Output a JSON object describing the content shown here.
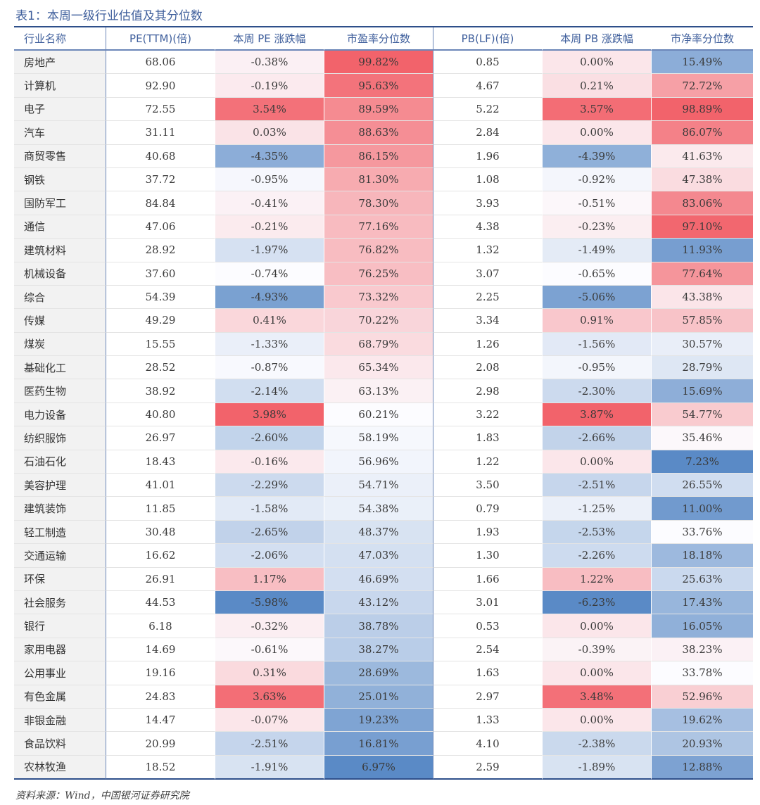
{
  "caption": "表1：本周一级行业估值及其分位数",
  "headers": [
    "行业名称",
    "PE(TTM)(倍)",
    "本周 PE 涨跌幅",
    "市盈率分位数",
    "PB(LF)(倍)",
    "本周 PB 涨跌幅",
    "市净率分位数"
  ],
  "rows": [
    [
      "房地产",
      "68.06",
      "-0.38%",
      "99.82%",
      "0.85",
      "0.00%",
      "15.49%"
    ],
    [
      "计算机",
      "92.90",
      "-0.19%",
      "95.63%",
      "4.67",
      "0.21%",
      "72.72%"
    ],
    [
      "电子",
      "72.55",
      "3.54%",
      "89.59%",
      "5.22",
      "3.57%",
      "98.89%"
    ],
    [
      "汽车",
      "31.11",
      "0.03%",
      "88.63%",
      "2.84",
      "0.00%",
      "86.07%"
    ],
    [
      "商贸零售",
      "40.68",
      "-4.35%",
      "86.15%",
      "1.96",
      "-4.39%",
      "41.63%"
    ],
    [
      "钢铁",
      "37.72",
      "-0.95%",
      "81.30%",
      "1.08",
      "-0.92%",
      "47.38%"
    ],
    [
      "国防军工",
      "84.84",
      "-0.41%",
      "78.30%",
      "3.93",
      "-0.51%",
      "83.06%"
    ],
    [
      "通信",
      "47.06",
      "-0.21%",
      "77.16%",
      "4.38",
      "-0.23%",
      "97.10%"
    ],
    [
      "建筑材料",
      "28.92",
      "-1.97%",
      "76.82%",
      "1.32",
      "-1.49%",
      "11.93%"
    ],
    [
      "机械设备",
      "37.60",
      "-0.74%",
      "76.25%",
      "3.07",
      "-0.65%",
      "77.64%"
    ],
    [
      "综合",
      "54.39",
      "-4.93%",
      "73.32%",
      "2.25",
      "-5.06%",
      "43.38%"
    ],
    [
      "传媒",
      "49.29",
      "0.41%",
      "70.22%",
      "3.34",
      "0.91%",
      "57.85%"
    ],
    [
      "煤炭",
      "15.55",
      "-1.33%",
      "68.79%",
      "1.26",
      "-1.56%",
      "30.57%"
    ],
    [
      "基础化工",
      "28.52",
      "-0.87%",
      "65.34%",
      "2.08",
      "-0.95%",
      "28.79%"
    ],
    [
      "医药生物",
      "38.92",
      "-2.14%",
      "63.13%",
      "2.98",
      "-2.30%",
      "15.69%"
    ],
    [
      "电力设备",
      "40.80",
      "3.98%",
      "60.21%",
      "3.22",
      "3.87%",
      "54.77%"
    ],
    [
      "纺织服饰",
      "26.97",
      "-2.60%",
      "58.19%",
      "1.83",
      "-2.66%",
      "35.46%"
    ],
    [
      "石油石化",
      "18.43",
      "-0.16%",
      "56.96%",
      "1.22",
      "0.00%",
      "7.23%"
    ],
    [
      "美容护理",
      "41.01",
      "-2.29%",
      "54.71%",
      "3.50",
      "-2.51%",
      "26.55%"
    ],
    [
      "建筑装饰",
      "11.85",
      "-1.58%",
      "54.38%",
      "0.79",
      "-1.25%",
      "11.00%"
    ],
    [
      "轻工制造",
      "30.48",
      "-2.65%",
      "48.37%",
      "1.93",
      "-2.53%",
      "33.76%"
    ],
    [
      "交通运输",
      "16.62",
      "-2.06%",
      "47.03%",
      "1.30",
      "-2.26%",
      "18.18%"
    ],
    [
      "环保",
      "26.91",
      "1.17%",
      "46.69%",
      "1.66",
      "1.22%",
      "25.63%"
    ],
    [
      "社会服务",
      "44.53",
      "-5.98%",
      "43.12%",
      "3.01",
      "-6.23%",
      "17.43%"
    ],
    [
      "银行",
      "6.18",
      "-0.32%",
      "38.78%",
      "0.53",
      "0.00%",
      "16.05%"
    ],
    [
      "家用电器",
      "14.69",
      "-0.61%",
      "38.27%",
      "2.54",
      "-0.39%",
      "38.23%"
    ],
    [
      "公用事业",
      "19.16",
      "0.31%",
      "28.69%",
      "1.63",
      "0.00%",
      "33.78%"
    ],
    [
      "有色金属",
      "24.83",
      "3.63%",
      "25.01%",
      "2.97",
      "3.48%",
      "52.96%"
    ],
    [
      "非银金融",
      "14.47",
      "-0.07%",
      "19.23%",
      "1.33",
      "0.00%",
      "19.62%"
    ],
    [
      "食品饮料",
      "20.99",
      "-2.51%",
      "16.81%",
      "4.10",
      "-2.38%",
      "20.93%"
    ],
    [
      "农林牧渔",
      "18.52",
      "-1.91%",
      "6.97%",
      "2.59",
      "-1.89%",
      "12.88%"
    ]
  ],
  "heatmap_columns": [
    2,
    3,
    5,
    6
  ],
  "colors": {
    "high": "#f2636b",
    "mid": "#fcfcff",
    "low": "#5a8ac6",
    "accent": "#2e4f8a"
  },
  "source": "资料来源：Wind，中国银河证券研究院"
}
